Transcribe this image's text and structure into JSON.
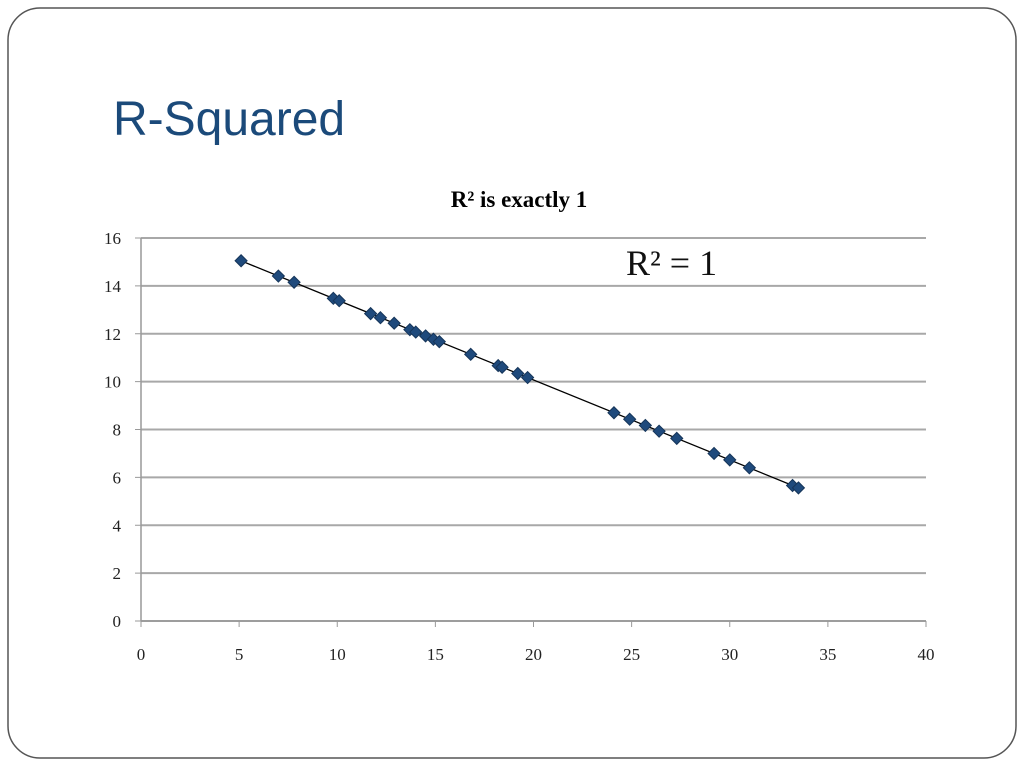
{
  "slide": {
    "title": "R-Squared"
  },
  "chart_data": {
    "type": "scatter",
    "title": "R² is exactly 1",
    "annotation": "R² = 1",
    "color": "#1f4a7c",
    "grid": true,
    "trendline": true,
    "xlim": [
      0,
      40
    ],
    "xticks": [
      0,
      5,
      10,
      15,
      20,
      25,
      30,
      35,
      40
    ],
    "ylim": [
      0,
      16
    ],
    "yticks": [
      0,
      2,
      4,
      6,
      8,
      10,
      12,
      14,
      16
    ],
    "x": [
      5.1,
      7.0,
      7.8,
      9.8,
      10.1,
      11.7,
      12.2,
      12.9,
      13.7,
      14.0,
      14.5,
      14.9,
      15.2,
      16.8,
      18.2,
      18.4,
      19.2,
      19.7,
      24.1,
      24.9,
      25.7,
      26.4,
      27.3,
      29.2,
      30.0,
      31.0,
      33.2,
      33.5
    ],
    "values": [
      15.05,
      14.41,
      14.15,
      13.48,
      13.38,
      12.84,
      12.67,
      12.44,
      12.17,
      12.07,
      11.91,
      11.77,
      11.67,
      11.14,
      10.67,
      10.6,
      10.34,
      10.17,
      8.7,
      8.43,
      8.17,
      7.93,
      7.63,
      7.0,
      6.73,
      6.4,
      5.66,
      5.56
    ]
  }
}
